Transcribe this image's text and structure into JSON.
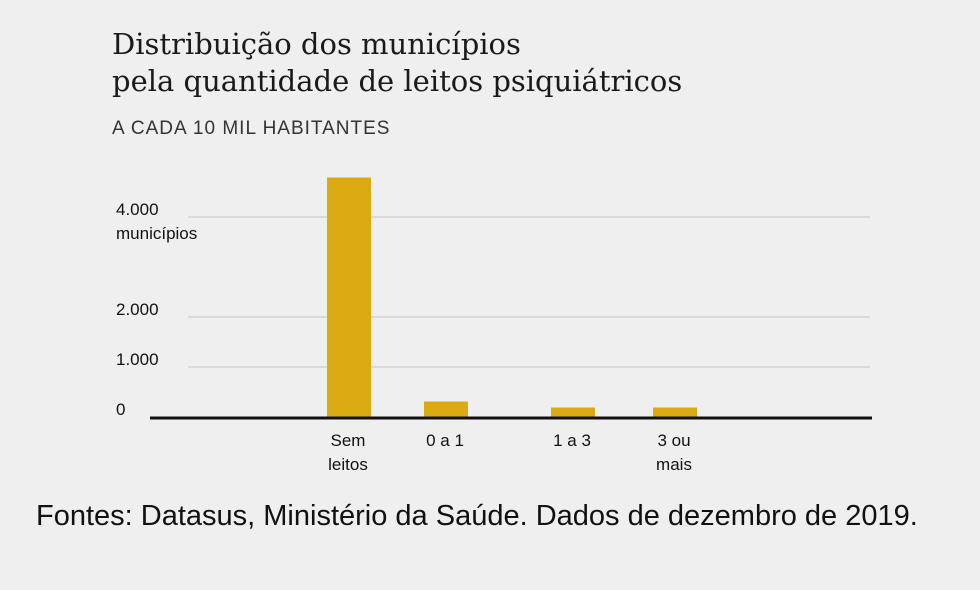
{
  "title_line1": "Distribuição dos municípios",
  "title_line2": "pela quantidade de leitos psiquiátricos",
  "subtitle": "A CADA 10 MIL HABITANTES",
  "source": "Fontes: Datasus, Ministério da Saúde. Dados de dezembro de 2019.",
  "colors": {
    "bar": "#dcab14",
    "baseline": "#111111",
    "grid": "#d4d4d4",
    "background": "#efefef"
  },
  "chart_data": {
    "type": "bar",
    "categories": [
      [
        "Sem",
        "leitos"
      ],
      [
        "0 a 1"
      ],
      [
        "1 a 3"
      ],
      [
        "3 ou",
        "mais"
      ]
    ],
    "values": [
      4790,
      310,
      190,
      190
    ],
    "ylim": [
      0,
      4800
    ],
    "y_ticks": [
      {
        "value": 0,
        "label": [
          "0"
        ]
      },
      {
        "value": 1000,
        "label": [
          "1.000"
        ]
      },
      {
        "value": 2000,
        "label": [
          "2.000"
        ]
      },
      {
        "value": 4000,
        "label": [
          "4.000",
          "municípios"
        ]
      }
    ],
    "grid": true,
    "legend": "none"
  }
}
